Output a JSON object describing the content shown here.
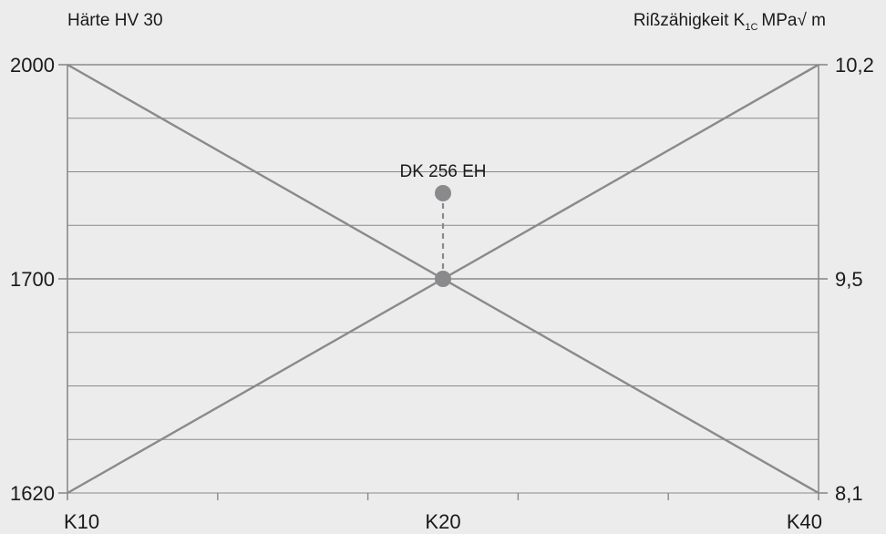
{
  "chart_data": {
    "type": "line",
    "ylabel_left": "Härte HV 30",
    "ylabel_right_prefix": "Rißzähigkeit K",
    "ylabel_right_subscript": "1C",
    "ylabel_right_suffix": "MPa√ m",
    "x_categories": [
      "K10",
      "K20",
      "K40"
    ],
    "x_minor_ticks": 5,
    "y_left_ticks": [
      "2000",
      "1700",
      "1620"
    ],
    "y_right_ticks": [
      "10,2",
      "9,5",
      "8,1"
    ],
    "series": [
      {
        "x": [
          "K10",
          "K40"
        ],
        "y_fraction": [
          1.0,
          0.0
        ],
        "color": "#8a8a8c"
      },
      {
        "x": [
          "K10",
          "K40"
        ],
        "y_fraction": [
          0.0,
          1.0
        ],
        "color": "#8a8a8c"
      }
    ],
    "annotation": {
      "label": "DK 256 EH",
      "x": "K20",
      "y_fraction": 0.7,
      "intersection_y_fraction": 0.5,
      "color": "#8a8a8c"
    },
    "grid": true,
    "grid_lines": 8
  }
}
